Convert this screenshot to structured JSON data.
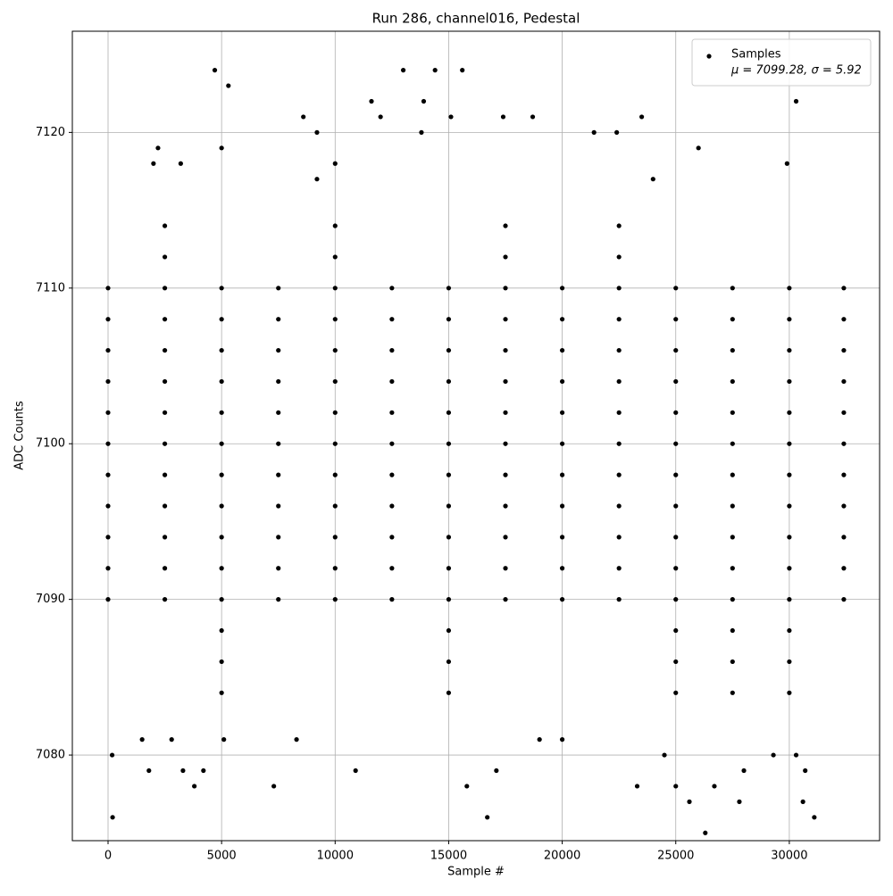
{
  "chart_data": {
    "type": "scatter",
    "title": "Run 286, channel016, Pedestal",
    "x_label": "Sample #",
    "y_label": "ADC Counts",
    "xlim": [
      -1573,
      33976
    ],
    "ylim": [
      7074.5,
      7126.5
    ],
    "xticks": [
      0,
      5000,
      10000,
      15000,
      20000,
      25000,
      30000
    ],
    "yticks": [
      7080,
      7090,
      7100,
      7110,
      7120
    ],
    "grid": true,
    "legend_position": "upper right",
    "legend_stats": "μ = 7099.28, σ = 5.92",
    "series": [
      {
        "name": "Samples",
        "color": "#000000",
        "x": [
          0,
          2500,
          5000,
          7500,
          10000,
          12500,
          15000,
          17500,
          20000,
          22500,
          25000,
          27500,
          30000,
          32400,
          0,
          2500,
          5000,
          7500,
          10000,
          12500,
          15000,
          17500,
          20000,
          22500,
          25000,
          27500,
          30000,
          32400,
          0,
          2500,
          5000,
          7500,
          10000,
          12500,
          15000,
          17500,
          20000,
          22500,
          25000,
          27500,
          30000,
          32400,
          0,
          2500,
          5000,
          7500,
          10000,
          12500,
          15000,
          17500,
          20000,
          22500,
          25000,
          27500,
          30000,
          32400,
          0,
          2500,
          5000,
          7500,
          10000,
          12500,
          15000,
          17500,
          20000,
          22500,
          25000,
          27500,
          30000,
          32400,
          0,
          2500,
          5000,
          7500,
          10000,
          12500,
          15000,
          17500,
          20000,
          22500,
          25000,
          27500,
          30000,
          32400,
          0,
          2500,
          5000,
          7500,
          10000,
          12500,
          15000,
          17500,
          20000,
          22500,
          25000,
          27500,
          30000,
          32400,
          0,
          2500,
          5000,
          7500,
          10000,
          12500,
          15000,
          17500,
          20000,
          22500,
          25000,
          27500,
          30000,
          32400,
          0,
          2500,
          5000,
          7500,
          10000,
          12500,
          15000,
          17500,
          20000,
          22500,
          25000,
          27500,
          30000,
          32400,
          0,
          2500,
          5000,
          7500,
          10000,
          12500,
          15000,
          17500,
          20000,
          22500,
          25000,
          27500,
          30000,
          32400,
          0,
          2500,
          5000,
          7500,
          10000,
          12500,
          15000,
          17500,
          20000,
          22500,
          25000,
          27500,
          30000,
          32400,
          5000,
          15000,
          25000,
          27500,
          30000,
          5000,
          15000,
          25000,
          27500,
          30000,
          5000,
          15000,
          25000,
          27500,
          30000,
          2500,
          10000,
          17500,
          22500,
          2500,
          10000,
          17500,
          22500,
          200,
          180,
          4700,
          5300,
          13000,
          14400,
          15600,
          11600,
          13900,
          30300,
          3800,
          7300,
          15800,
          16700,
          23300,
          25000,
          26300,
          27800,
          30600,
          31100,
          25600,
          26700,
          1800,
          3300,
          4200,
          10900,
          17100,
          28000,
          30700,
          8600,
          12000,
          15100,
          17400,
          18700,
          23500,
          22400,
          21400,
          9200,
          13800,
          1500,
          5100,
          2800,
          8300,
          19000,
          20000,
          24500,
          29300,
          30300,
          3200,
          2000,
          9200,
          24000,
          29900,
          26000,
          2200,
          5000,
          10000
        ],
        "values": [
          7090,
          7090,
          7090,
          7090,
          7090,
          7090,
          7090,
          7090,
          7090,
          7090,
          7090,
          7090,
          7090,
          7090,
          7092,
          7092,
          7092,
          7092,
          7092,
          7092,
          7092,
          7092,
          7092,
          7092,
          7092,
          7092,
          7092,
          7092,
          7094,
          7094,
          7094,
          7094,
          7094,
          7094,
          7094,
          7094,
          7094,
          7094,
          7094,
          7094,
          7094,
          7094,
          7096,
          7096,
          7096,
          7096,
          7096,
          7096,
          7096,
          7096,
          7096,
          7096,
          7096,
          7096,
          7096,
          7096,
          7098,
          7098,
          7098,
          7098,
          7098,
          7098,
          7098,
          7098,
          7098,
          7098,
          7098,
          7098,
          7098,
          7098,
          7100,
          7100,
          7100,
          7100,
          7100,
          7100,
          7100,
          7100,
          7100,
          7100,
          7100,
          7100,
          7100,
          7100,
          7102,
          7102,
          7102,
          7102,
          7102,
          7102,
          7102,
          7102,
          7102,
          7102,
          7102,
          7102,
          7102,
          7102,
          7104,
          7104,
          7104,
          7104,
          7104,
          7104,
          7104,
          7104,
          7104,
          7104,
          7104,
          7104,
          7104,
          7104,
          7106,
          7106,
          7106,
          7106,
          7106,
          7106,
          7106,
          7106,
          7106,
          7106,
          7106,
          7106,
          7106,
          7106,
          7108,
          7108,
          7108,
          7108,
          7108,
          7108,
          7108,
          7108,
          7108,
          7108,
          7108,
          7108,
          7108,
          7108,
          7110,
          7110,
          7110,
          7110,
          7110,
          7110,
          7110,
          7110,
          7110,
          7110,
          7110,
          7110,
          7110,
          7110,
          7084,
          7084,
          7084,
          7084,
          7084,
          7086,
          7086,
          7086,
          7086,
          7086,
          7088,
          7088,
          7088,
          7088,
          7088,
          7112,
          7112,
          7112,
          7112,
          7114,
          7114,
          7114,
          7114,
          7076,
          7080,
          7124,
          7123,
          7124,
          7124,
          7124,
          7122,
          7122,
          7122,
          7078,
          7078,
          7078,
          7076,
          7078,
          7078,
          7075,
          7077,
          7077,
          7076,
          7077,
          7078,
          7079,
          7079,
          7079,
          7079,
          7079,
          7079,
          7079,
          7121,
          7121,
          7121,
          7121,
          7121,
          7121,
          7120,
          7120,
          7120,
          7120,
          7081,
          7081,
          7081,
          7081,
          7081,
          7081,
          7080,
          7080,
          7080,
          7118,
          7118,
          7117,
          7117,
          7118,
          7119,
          7119,
          7119,
          7118
        ]
      }
    ]
  }
}
